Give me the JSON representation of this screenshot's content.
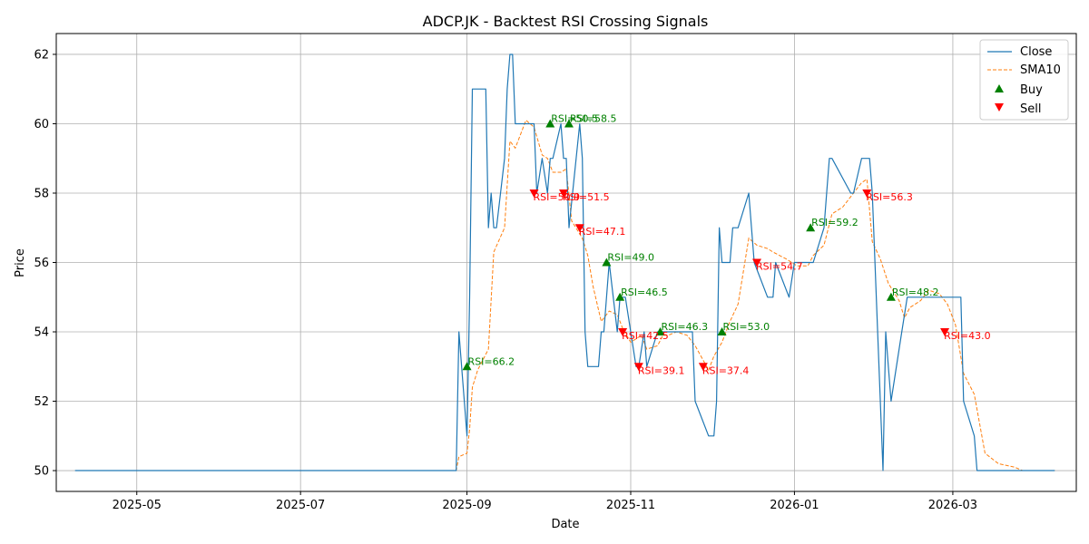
{
  "chart_data": {
    "type": "line",
    "title": "ADCP.JK - Backtest RSI Crossing Signals",
    "xlabel": "Date",
    "ylabel": "Price",
    "xlim": [
      "2025-04-01",
      "2026-04-16"
    ],
    "ylim": [
      49.4,
      62.6
    ],
    "x_ticks": [
      "2025-05-01",
      "2025-07-01",
      "2025-09-01",
      "2025-11-01",
      "2026-01-01",
      "2026-03-01"
    ],
    "x_tick_labels": [
      "2025-05",
      "2025-07",
      "2025-09",
      "2025-11",
      "2026-01",
      "2026-03"
    ],
    "y_ticks": [
      50,
      52,
      54,
      56,
      58,
      60,
      62
    ],
    "grid": true,
    "legend_position": "top-right",
    "colors": {
      "close": "#1f77b4",
      "sma": "#ff7f0e",
      "buy": "#008000",
      "sell": "#ff0000",
      "grid": "#b0b0b0"
    },
    "series": [
      {
        "name": "Close",
        "style": "solid",
        "x": [
          "2025-04-08",
          "2025-08-28",
          "2025-08-29",
          "2025-09-01",
          "2025-09-02",
          "2025-09-03",
          "2025-09-08",
          "2025-09-09",
          "2025-09-10",
          "2025-09-11",
          "2025-09-12",
          "2025-09-15",
          "2025-09-16",
          "2025-09-17",
          "2025-09-18",
          "2025-09-19",
          "2025-09-26",
          "2025-09-27",
          "2025-09-29",
          "2025-10-01",
          "2025-10-02",
          "2025-10-03",
          "2025-10-06",
          "2025-10-07",
          "2025-10-08",
          "2025-10-09",
          "2025-10-13",
          "2025-10-14",
          "2025-10-15",
          "2025-10-16",
          "2025-10-20",
          "2025-10-21",
          "2025-10-22",
          "2025-10-24",
          "2025-10-27",
          "2025-10-28",
          "2025-10-30",
          "2025-11-03",
          "2025-11-04",
          "2025-11-06",
          "2025-11-07",
          "2025-11-11",
          "2025-11-12",
          "2025-11-24",
          "2025-11-25",
          "2025-11-30",
          "2025-12-02",
          "2025-12-03",
          "2025-12-04",
          "2025-12-05",
          "2025-12-08",
          "2025-12-09",
          "2025-12-10",
          "2025-12-11",
          "2025-12-15",
          "2025-12-17",
          "2025-12-22",
          "2025-12-24",
          "2025-12-25",
          "2025-12-30",
          "2026-01-01",
          "2026-01-06",
          "2026-01-08",
          "2026-01-12",
          "2026-01-13",
          "2026-01-14",
          "2026-01-15",
          "2026-01-22",
          "2026-01-23",
          "2026-01-26",
          "2026-01-28",
          "2026-01-29",
          "2026-01-30",
          "2026-02-03",
          "2026-02-04",
          "2026-02-05",
          "2026-02-06",
          "2026-02-10",
          "2026-02-12",
          "2026-02-13",
          "2026-02-26",
          "2026-03-04",
          "2026-03-05",
          "2026-03-09",
          "2026-03-10",
          "2026-04-08"
        ],
        "values": [
          50,
          50,
          54,
          51,
          55,
          61,
          61,
          57,
          58,
          57,
          57,
          59,
          61,
          62,
          62,
          60,
          60,
          58,
          59,
          58,
          59,
          59,
          60,
          59,
          59,
          57,
          60,
          59,
          54,
          53,
          53,
          54,
          54,
          56,
          54,
          55,
          55,
          53,
          53,
          54,
          53,
          54,
          54,
          54,
          52,
          51,
          51,
          52,
          57,
          56,
          56,
          57,
          57,
          57,
          58,
          56,
          55,
          55,
          56,
          55,
          56,
          56,
          56,
          57,
          58,
          59,
          59,
          58,
          58,
          59,
          59,
          59,
          58,
          50,
          54,
          53,
          52,
          54,
          55,
          55,
          55,
          55,
          52,
          51,
          50,
          50
        ]
      },
      {
        "name": "SMA10",
        "style": "dashed",
        "x": [
          "2025-04-22",
          "2025-08-28",
          "2025-08-29",
          "2025-09-01",
          "2025-09-02",
          "2025-09-03",
          "2025-09-05",
          "2025-09-09",
          "2025-09-11",
          "2025-09-15",
          "2025-09-17",
          "2025-09-19",
          "2025-09-23",
          "2025-09-26",
          "2025-09-29",
          "2025-10-01",
          "2025-10-03",
          "2025-10-06",
          "2025-10-08",
          "2025-10-10",
          "2025-10-14",
          "2025-10-16",
          "2025-10-18",
          "2025-10-21",
          "2025-10-24",
          "2025-10-27",
          "2025-10-29",
          "2025-11-01",
          "2025-11-03",
          "2025-11-05",
          "2025-11-07",
          "2025-11-11",
          "2025-11-13",
          "2025-11-15",
          "2025-11-18",
          "2025-11-22",
          "2025-11-25",
          "2025-11-30",
          "2025-12-02",
          "2025-12-05",
          "2025-12-08",
          "2025-12-11",
          "2025-12-15",
          "2025-12-18",
          "2025-12-22",
          "2025-12-24",
          "2025-12-29",
          "2026-01-02",
          "2026-01-06",
          "2026-01-08",
          "2026-01-12",
          "2026-01-15",
          "2026-01-19",
          "2026-01-23",
          "2026-01-26",
          "2026-01-28",
          "2026-01-30",
          "2026-02-02",
          "2026-02-05",
          "2026-02-09",
          "2026-02-11",
          "2026-02-13",
          "2026-02-17",
          "2026-02-20",
          "2026-02-24",
          "2026-02-27",
          "2026-03-02",
          "2026-03-05",
          "2026-03-09",
          "2026-03-13",
          "2026-03-18",
          "2026-03-24",
          "2026-03-27",
          "2026-04-08"
        ],
        "values": [
          50,
          50,
          50.4,
          50.5,
          51.2,
          52.4,
          52.9,
          53.5,
          56.3,
          57,
          59.5,
          59.3,
          60.1,
          59.9,
          59.1,
          59,
          58.6,
          58.6,
          58.7,
          57.2,
          56.7,
          56.2,
          55.3,
          54.3,
          54.6,
          54.5,
          54.1,
          53.7,
          53.8,
          53.9,
          53.5,
          53.6,
          53.9,
          53.9,
          54,
          53.9,
          53.6,
          52.9,
          53.3,
          53.7,
          54.3,
          54.8,
          56.7,
          56.5,
          56.4,
          56.3,
          56.1,
          55.9,
          55.9,
          56.2,
          56.5,
          57.4,
          57.6,
          58,
          58.3,
          58.4,
          56.6,
          56.1,
          55.4,
          54.9,
          54.4,
          54.7,
          54.9,
          55.2,
          55.1,
          54.8,
          54.2,
          52.8,
          52.2,
          50.5,
          50.2,
          50.1,
          50,
          50
        ]
      }
    ],
    "buy_signals": [
      {
        "date": "2025-09-01",
        "price": 53,
        "label": "RSI=66.2"
      },
      {
        "date": "2025-10-02",
        "price": 60,
        "label": "RSI=50.5"
      },
      {
        "date": "2025-10-09",
        "price": 60,
        "label": "RSI=58.5"
      },
      {
        "date": "2025-10-23",
        "price": 56,
        "label": "RSI=49.0"
      },
      {
        "date": "2025-10-28",
        "price": 55,
        "label": "RSI=46.5"
      },
      {
        "date": "2025-11-12",
        "price": 54,
        "label": "RSI=46.3"
      },
      {
        "date": "2025-12-05",
        "price": 54,
        "label": "RSI=53.0"
      },
      {
        "date": "2026-01-07",
        "price": 57,
        "label": "RSI=59.2"
      },
      {
        "date": "2026-02-06",
        "price": 55,
        "label": "RSI=48.2"
      }
    ],
    "sell_signals": [
      {
        "date": "2025-09-26",
        "price": 58,
        "label": "RSI=50.9"
      },
      {
        "date": "2025-10-07",
        "price": 58,
        "label": "RSI=51.5"
      },
      {
        "date": "2025-10-13",
        "price": 57,
        "label": "RSI=47.1"
      },
      {
        "date": "2025-10-29",
        "price": 54,
        "label": "RSI=42.5"
      },
      {
        "date": "2025-11-04",
        "price": 53,
        "label": "RSI=39.1"
      },
      {
        "date": "2025-11-28",
        "price": 53,
        "label": "RSI=37.4"
      },
      {
        "date": "2025-12-18",
        "price": 56,
        "label": "RSI=54.7"
      },
      {
        "date": "2026-01-28",
        "price": 58,
        "label": "RSI=56.3"
      },
      {
        "date": "2026-02-26",
        "price": 54,
        "label": "RSI=43.0"
      }
    ],
    "legend": [
      "Close",
      "SMA10",
      "Buy",
      "Sell"
    ]
  }
}
